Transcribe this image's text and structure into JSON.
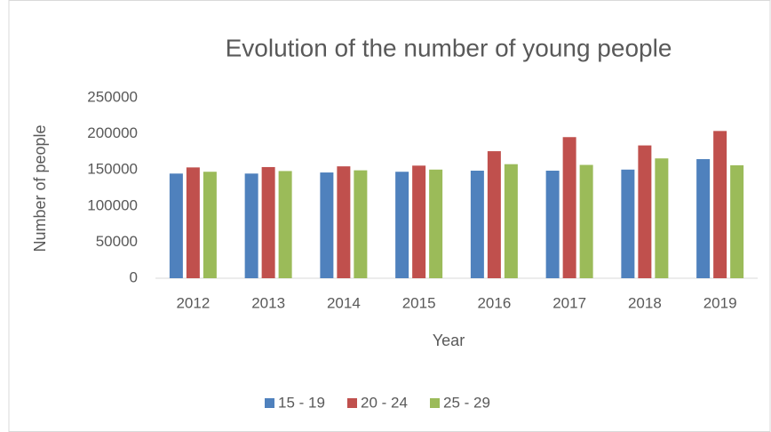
{
  "chart_data": {
    "type": "bar",
    "title": "Evolution of the number of young people",
    "x_label": "Year",
    "y_label": "Number of people",
    "categories": [
      "2012",
      "2013",
      "2014",
      "2015",
      "2016",
      "2017",
      "2018",
      "2019"
    ],
    "series": [
      {
        "name": "15 - 19",
        "color": "#4f81bd",
        "values": [
          145000,
          145000,
          146500,
          147500,
          149000,
          149000,
          150500,
          165000
        ]
      },
      {
        "name": "20 - 24",
        "color": "#c0504d",
        "values": [
          153500,
          154000,
          155000,
          156000,
          176000,
          195500,
          184000,
          204000
        ]
      },
      {
        "name": "25 - 29",
        "color": "#9bbb59",
        "values": [
          147500,
          148500,
          149500,
          150500,
          158000,
          157000,
          166000,
          156500
        ]
      }
    ],
    "ylim": [
      0,
      250000
    ],
    "yticks": [
      0,
      50000,
      100000,
      150000,
      200000,
      250000
    ],
    "grid": false,
    "legend": "bottom"
  }
}
